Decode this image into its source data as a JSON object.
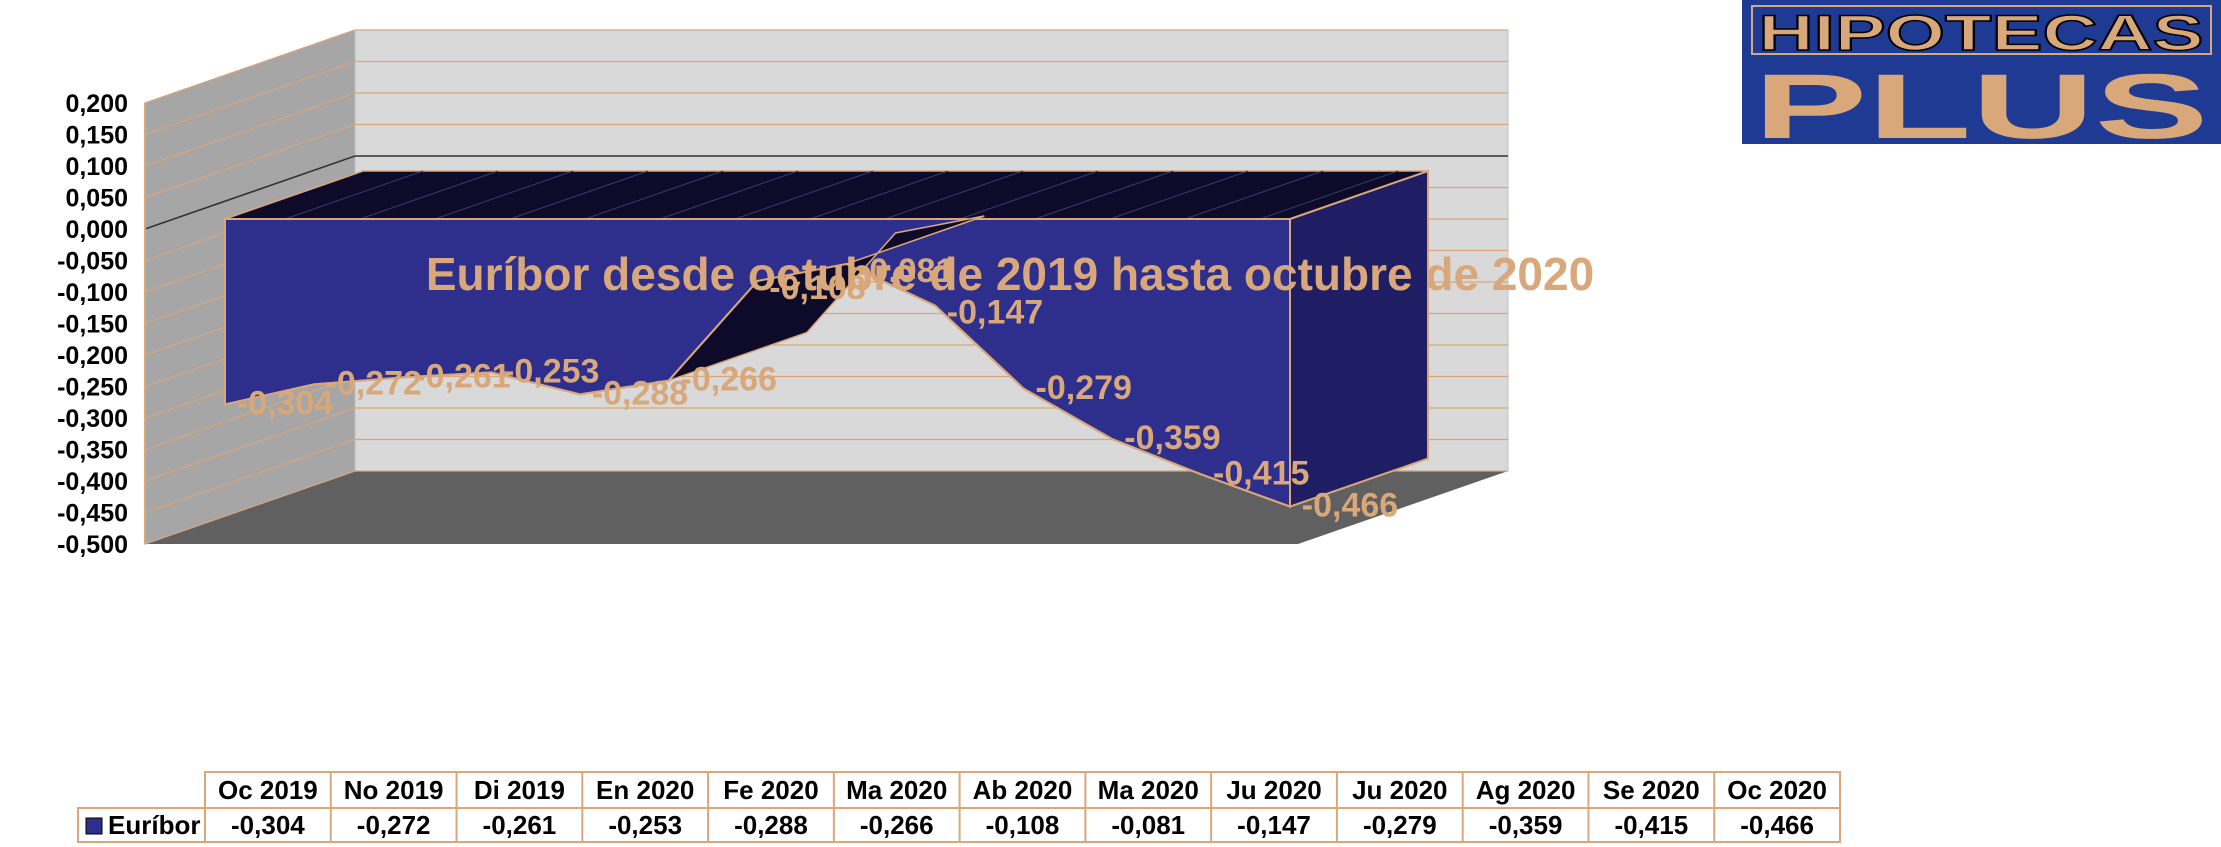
{
  "chart_data": {
    "type": "area",
    "title": "Euríbor desde octubre de 2019 hasta octubre de 2020",
    "categories": [
      "Oc 2019",
      "No 2019",
      "Di 2019",
      "En 2020",
      "Fe 2020",
      "Ma 2020",
      "Ab 2020",
      "Ma 2020",
      "Ju 2020",
      "Ju 2020",
      "Ag 2020",
      "Se 2020",
      "Oc 2020"
    ],
    "series": [
      {
        "name": "Euríbor",
        "values": [
          -0.304,
          -0.272,
          -0.261,
          -0.253,
          -0.288,
          -0.266,
          -0.108,
          -0.081,
          -0.147,
          -0.279,
          -0.359,
          -0.415,
          -0.466
        ],
        "labels": [
          "-0,304",
          "-0,272",
          "-0,261",
          "-0,253",
          "-0,288",
          "-0,266",
          "-0,108",
          "-0,081",
          "-0,147",
          "-0,279",
          "-0,359",
          "-0,415",
          "-0,466"
        ]
      }
    ],
    "yticks": [
      "0,200",
      "0,150",
      "0,100",
      "0,050",
      "0,000",
      "-0,050",
      "-0,100",
      "-0,150",
      "-0,200",
      "-0,250",
      "-0,300",
      "-0,350",
      "-0,400",
      "-0,450",
      "-0,500"
    ],
    "ylim": [
      -0.5,
      0.2
    ],
    "three_d": true,
    "grid": true,
    "legend": "data-table",
    "colors": {
      "series_fill": "#2E2E8C",
      "series_top": "#0E0B2A",
      "series_side": "#1F1D63",
      "series_outline": "#D8A77A",
      "label_color": "#D8A77A",
      "back_wall": "#D9D9D9",
      "side_wall": "#A6A6A6",
      "floor": "#606060",
      "gridline": "#D8A77A"
    },
    "data_table": {
      "legend_label": "Euríbor",
      "values": [
        "-0,304",
        "-0,272",
        "-0,261",
        "-0,253",
        "-0,288",
        "-0,266",
        "-0,108",
        "-0,081",
        "-0,147",
        "-0,279",
        "-0,359",
        "-0,415",
        "-0,466"
      ]
    }
  },
  "logo": {
    "line1": "HIPOTECAS",
    "line2": "PLUS",
    "bg_color": "#1F3A93",
    "text_color": "#D8A77A"
  }
}
